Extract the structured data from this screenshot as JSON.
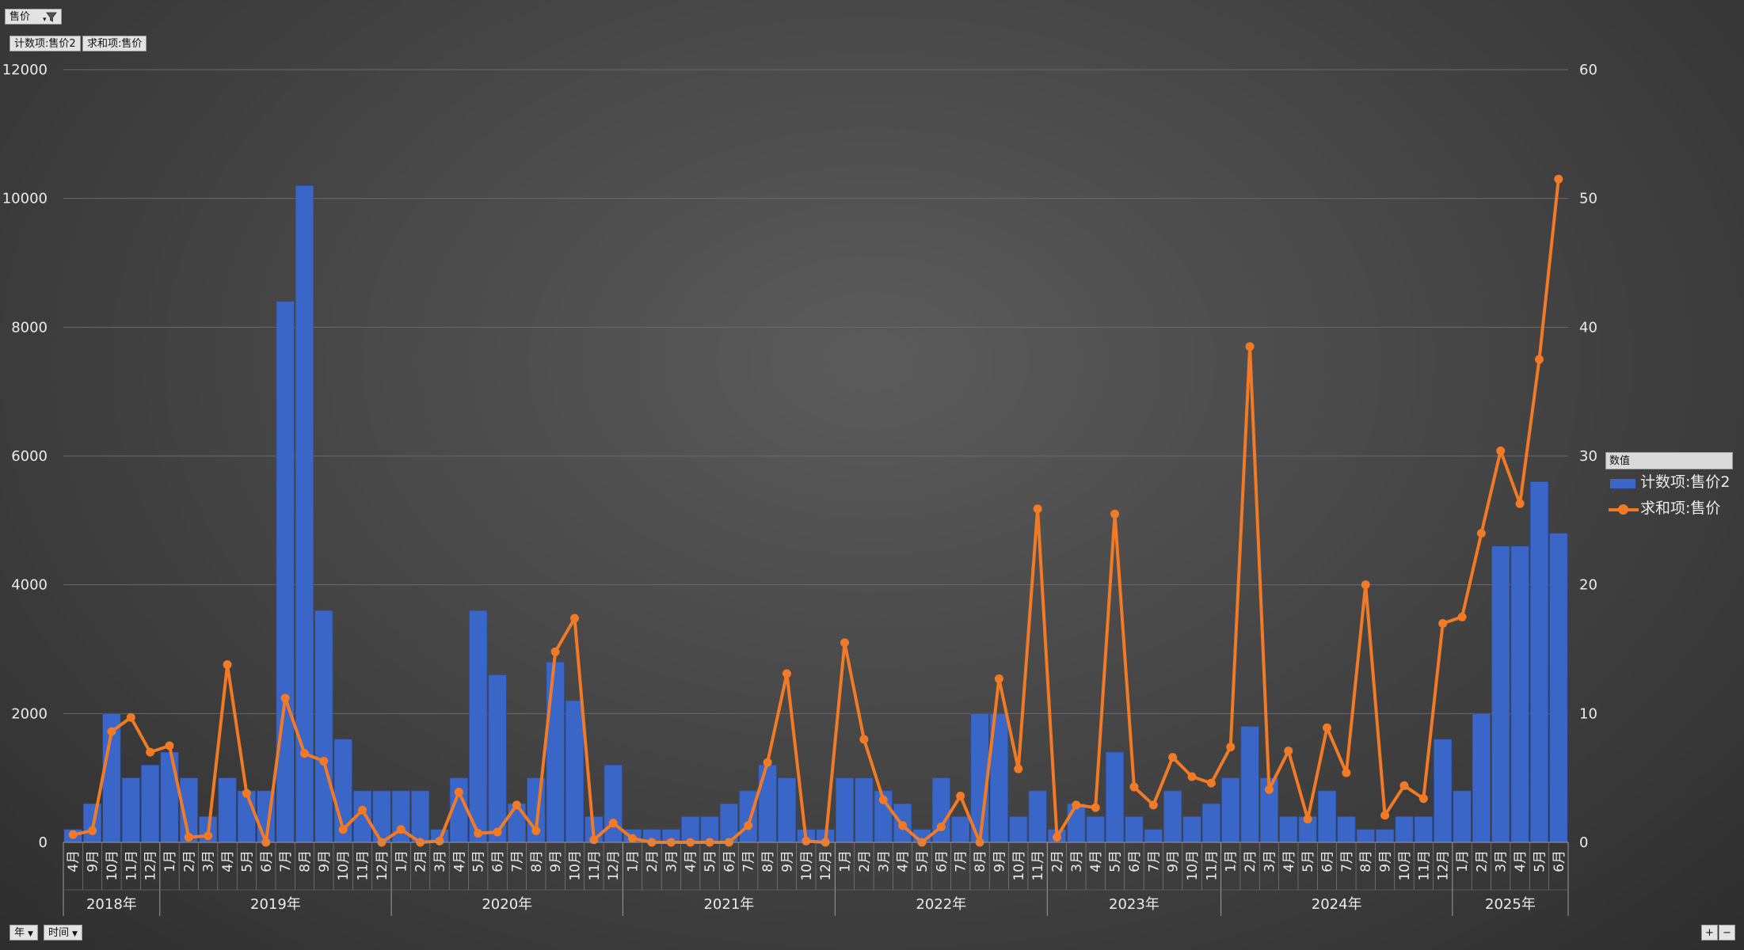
{
  "controls": {
    "report_filter_label": "售价",
    "value_field_1": "计数项:售价2",
    "value_field_2": "求和项:售价",
    "axis_field_year": "年",
    "axis_field_time": "时间",
    "zoom_in": "+",
    "zoom_out": "−"
  },
  "legend": {
    "title": "数值",
    "items": [
      "计数项:售价2",
      "求和项:售价"
    ]
  },
  "colors": {
    "bar": "#3a66c8",
    "line": "#f07a26",
    "gridline": "#6a6a6a",
    "text": "#ececec"
  },
  "icons": [
    "funnel-icon",
    "chevron-down-icon"
  ],
  "chart_data": {
    "type": "bar+line",
    "y_left": {
      "ylim": [
        0,
        12000
      ],
      "ticks": [
        "0",
        "2000",
        "4000",
        "6000",
        "8000",
        "10000",
        "12000"
      ]
    },
    "y_right": {
      "ylim": [
        0,
        60
      ],
      "ticks": [
        "0",
        "10",
        "20",
        "30",
        "40",
        "50",
        "60"
      ]
    },
    "grid": true,
    "legend_position": "right",
    "groups": [
      {
        "year": "2018年",
        "months": [
          "4月",
          "9月",
          "10月",
          "11月",
          "12月"
        ]
      },
      {
        "year": "2019年",
        "months": [
          "1月",
          "2月",
          "3月",
          "4月",
          "5月",
          "6月",
          "7月",
          "8月",
          "9月",
          "10月",
          "11月",
          "12月"
        ]
      },
      {
        "year": "2020年",
        "months": [
          "1月",
          "2月",
          "3月",
          "4月",
          "5月",
          "6月",
          "7月",
          "8月",
          "9月",
          "10月",
          "11月",
          "12月"
        ]
      },
      {
        "year": "2021年",
        "months": [
          "1月",
          "2月",
          "3月",
          "4月",
          "5月",
          "6月",
          "7月",
          "8月",
          "9月",
          "10月",
          "12月"
        ]
      },
      {
        "year": "2022年",
        "months": [
          "1月",
          "2月",
          "3月",
          "4月",
          "5月",
          "6月",
          "7月",
          "8月",
          "9月",
          "10月",
          "11月"
        ]
      },
      {
        "year": "2023年",
        "months": [
          "2月",
          "3月",
          "4月",
          "5月",
          "6月",
          "7月",
          "9月",
          "10月",
          "11月"
        ]
      },
      {
        "year": "2024年",
        "months": [
          "1月",
          "2月",
          "3月",
          "4月",
          "5月",
          "6月",
          "7月",
          "8月",
          "9月",
          "10月",
          "11月",
          "12月"
        ]
      },
      {
        "year": "2025年",
        "months": [
          "1月",
          "2月",
          "3月",
          "4月",
          "5月",
          "6月"
        ]
      }
    ],
    "series": [
      {
        "name": "计数项:售价2",
        "kind": "bar",
        "axis": "left",
        "values": [
          200,
          600,
          2000,
          1000,
          1200,
          1400,
          1000,
          400,
          1000,
          800,
          800,
          8400,
          10200,
          3600,
          1600,
          800,
          800,
          800,
          800,
          200,
          1000,
          3600,
          2600,
          600,
          1000,
          2800,
          2200,
          400,
          1200,
          200,
          200,
          200,
          400,
          400,
          600,
          800,
          1200,
          1000,
          200,
          200,
          1000,
          1000,
          800,
          600,
          200,
          1000,
          400,
          2000,
          2000,
          400,
          800,
          200,
          600,
          400,
          1400,
          400,
          200,
          800,
          400,
          600,
          1000,
          1800,
          1000,
          400,
          400,
          800,
          400,
          200,
          200,
          400,
          400,
          1600,
          800,
          2000,
          4600,
          4600,
          5600,
          4800
        ]
      },
      {
        "name": "求和项:售价",
        "kind": "line",
        "axis": "right",
        "values": [
          0.6,
          0.9,
          8.6,
          9.7,
          7.0,
          7.5,
          0.4,
          0.5,
          13.8,
          3.8,
          0.0,
          11.2,
          6.9,
          6.3,
          1.0,
          2.5,
          0.0,
          1.0,
          0.0,
          0.1,
          3.9,
          0.7,
          0.8,
          2.9,
          0.9,
          14.8,
          17.4,
          0.2,
          1.5,
          0.3,
          0.0,
          0.0,
          0.0,
          0.0,
          0.0,
          1.3,
          6.2,
          13.1,
          0.1,
          0.0,
          15.5,
          8.0,
          3.3,
          1.3,
          0.0,
          1.2,
          3.6,
          0.0,
          12.7,
          5.7,
          25.9,
          0.4,
          2.9,
          2.7,
          25.5,
          4.3,
          2.9,
          6.6,
          5.1,
          4.6,
          7.4,
          38.5,
          4.1,
          7.1,
          1.8,
          8.9,
          5.4,
          20.0,
          2.1,
          4.4,
          3.4,
          17.0,
          17.5,
          24.0,
          30.4,
          26.3,
          37.5,
          51.5
        ]
      }
    ]
  }
}
